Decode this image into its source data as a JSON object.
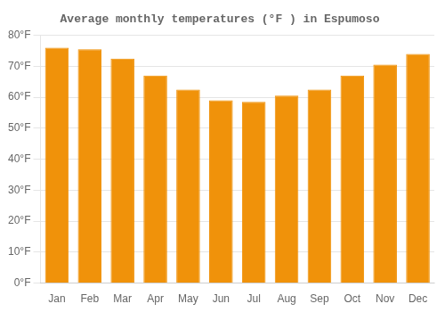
{
  "chart_data": {
    "type": "bar",
    "title": "Average monthly temperatures (°F ) in Espumoso",
    "categories": [
      "Jan",
      "Feb",
      "Mar",
      "Apr",
      "May",
      "Jun",
      "Jul",
      "Aug",
      "Sep",
      "Oct",
      "Nov",
      "Dec"
    ],
    "values": [
      76,
      75.5,
      72.5,
      67,
      62.5,
      59,
      58.5,
      60.5,
      62.5,
      67,
      70.5,
      74
    ],
    "color": "#F0920A",
    "ylim": [
      0,
      80
    ],
    "yticks": [
      {
        "value": 0,
        "label": "0°F"
      },
      {
        "value": 10,
        "label": "10°F"
      },
      {
        "value": 20,
        "label": "20°F"
      },
      {
        "value": 30,
        "label": "30°F"
      },
      {
        "value": 40,
        "label": "40°F"
      },
      {
        "value": 50,
        "label": "50°F"
      },
      {
        "value": 60,
        "label": "60°F"
      },
      {
        "value": 70,
        "label": "70°F"
      },
      {
        "value": 80,
        "label": "80°F"
      }
    ],
    "grid": true
  }
}
